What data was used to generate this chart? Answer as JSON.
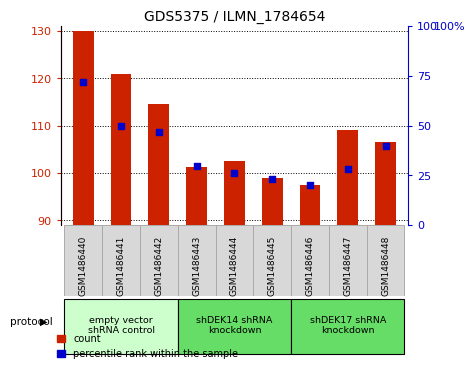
{
  "title": "GDS5375 / ILMN_1784654",
  "samples": [
    "GSM1486440",
    "GSM1486441",
    "GSM1486442",
    "GSM1486443",
    "GSM1486444",
    "GSM1486445",
    "GSM1486446",
    "GSM1486447",
    "GSM1486448"
  ],
  "counts": [
    130,
    121,
    114.5,
    101.2,
    102.5,
    99.0,
    97.5,
    109.0,
    106.5
  ],
  "percentile_ranks": [
    72,
    50,
    47,
    30,
    26,
    23,
    20,
    28,
    40
  ],
  "ylim_left": [
    89,
    131
  ],
  "ylim_right": [
    0,
    100
  ],
  "yticks_left": [
    90,
    100,
    110,
    120,
    130
  ],
  "yticks_right": [
    0,
    25,
    50,
    75,
    100
  ],
  "bar_color": "#cc2200",
  "dot_color": "#0000cc",
  "bar_bottom": 89,
  "protocols": [
    {
      "label": "empty vector\nshRNA control",
      "start": 0,
      "end": 3,
      "color": "#ccffcc"
    },
    {
      "label": "shDEK14 shRNA\nknockdown",
      "start": 3,
      "end": 6,
      "color": "#66dd66"
    },
    {
      "label": "shDEK17 shRNA\nknockdown",
      "start": 6,
      "end": 9,
      "color": "#66dd66"
    }
  ],
  "legend_items": [
    {
      "label": "count",
      "color": "#cc2200"
    },
    {
      "label": "percentile rank within the sample",
      "color": "#0000cc"
    }
  ],
  "protocol_label": "protocol",
  "left_label_color": "#cc2200",
  "right_label_color": "#0000cc",
  "tick_label_fontsize": 8,
  "title_fontsize": 10,
  "sample_box_color": "#d8d8d8",
  "sample_box_edge_color": "#aaaaaa",
  "right_axis_top_label": "100%"
}
